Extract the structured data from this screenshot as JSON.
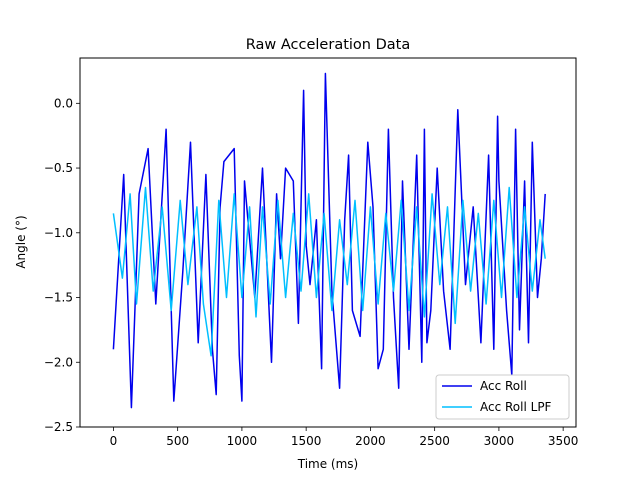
{
  "chart_data": {
    "type": "line",
    "title": "Raw Acceleration Data",
    "xlabel": "Time (ms)",
    "ylabel": "Angle (°)",
    "xlim": [
      -260,
      3600
    ],
    "ylim": [
      -2.5,
      0.35
    ],
    "xticks": [
      0,
      500,
      1000,
      1500,
      2000,
      2500,
      3000,
      3500
    ],
    "yticks": [
      0.0,
      -0.5,
      -1.0,
      -1.5,
      -2.0,
      -2.5
    ],
    "ytick_labels": [
      "0.0",
      "−0.5",
      "−1.0",
      "−1.5",
      "−2.0",
      "−2.5"
    ],
    "grid": false,
    "legend_position": "lower-right",
    "series": [
      {
        "name": "Acc Roll",
        "color": "#0000ee",
        "x": [
          0,
          80,
          140,
          200,
          270,
          330,
          410,
          470,
          540,
          600,
          660,
          720,
          770,
          800,
          830,
          860,
          940,
          980,
          1000,
          1020,
          1100,
          1160,
          1230,
          1270,
          1300,
          1340,
          1400,
          1440,
          1480,
          1500,
          1530,
          1580,
          1620,
          1650,
          1700,
          1760,
          1800,
          1830,
          1860,
          1920,
          1980,
          2020,
          2060,
          2100,
          2140,
          2180,
          2220,
          2250,
          2300,
          2360,
          2400,
          2420,
          2440,
          2470,
          2520,
          2570,
          2620,
          2680,
          2740,
          2800,
          2860,
          2920,
          2960,
          2990,
          3000,
          3060,
          3100,
          3130,
          3160,
          3200,
          3230,
          3260,
          3300,
          3330,
          3360
        ],
        "y": [
          -1.9,
          -0.55,
          -2.35,
          -0.7,
          -0.35,
          -1.55,
          -0.2,
          -2.3,
          -1.3,
          -0.3,
          -1.85,
          -0.55,
          -1.9,
          -2.25,
          -0.8,
          -0.45,
          -0.35,
          -1.95,
          -2.3,
          -0.6,
          -1.5,
          -0.5,
          -2.0,
          -0.7,
          -1.2,
          -0.5,
          -0.6,
          -1.7,
          0.1,
          -1.1,
          -1.4,
          -0.9,
          -2.05,
          0.23,
          -1.45,
          -2.2,
          -0.9,
          -0.4,
          -1.6,
          -1.8,
          -0.3,
          -0.8,
          -2.05,
          -1.9,
          -0.2,
          -1.5,
          -2.2,
          -0.6,
          -1.9,
          -0.4,
          -2.0,
          -0.2,
          -1.85,
          -1.6,
          -0.5,
          -1.45,
          -1.9,
          -0.05,
          -1.4,
          -0.8,
          -1.85,
          -0.4,
          -1.9,
          -0.1,
          -0.6,
          -1.6,
          -2.1,
          -0.2,
          -1.75,
          -0.6,
          -1.85,
          -0.3,
          -1.5,
          -1.2,
          -0.7
        ]
      },
      {
        "name": "Acc Roll LPF",
        "color": "#00bfff",
        "x": [
          0,
          70,
          130,
          180,
          250,
          310,
          380,
          450,
          520,
          580,
          650,
          700,
          760,
          820,
          880,
          940,
          1000,
          1060,
          1110,
          1160,
          1220,
          1280,
          1340,
          1400,
          1460,
          1520,
          1580,
          1640,
          1700,
          1760,
          1820,
          1880,
          1940,
          2000,
          2060,
          2120,
          2180,
          2240,
          2300,
          2360,
          2420,
          2480,
          2540,
          2600,
          2660,
          2720,
          2780,
          2840,
          2900,
          2960,
          3020,
          3080,
          3140,
          3200,
          3260,
          3320,
          3360
        ],
        "y": [
          -0.85,
          -1.35,
          -0.7,
          -1.55,
          -0.65,
          -1.45,
          -0.8,
          -1.6,
          -0.75,
          -1.4,
          -0.8,
          -1.55,
          -1.95,
          -0.75,
          -1.5,
          -0.7,
          -1.5,
          -0.8,
          -1.65,
          -0.8,
          -1.55,
          -0.75,
          -1.5,
          -0.85,
          -1.45,
          -0.7,
          -1.5,
          -0.85,
          -1.6,
          -0.9,
          -1.4,
          -0.75,
          -1.6,
          -0.8,
          -1.55,
          -0.85,
          -1.45,
          -0.75,
          -1.6,
          -0.8,
          -1.65,
          -0.7,
          -1.4,
          -0.8,
          -1.7,
          -0.75,
          -1.45,
          -0.85,
          -1.55,
          -0.75,
          -1.5,
          -0.65,
          -1.5,
          -0.8,
          -1.45,
          -0.9,
          -1.2
        ]
      }
    ]
  }
}
